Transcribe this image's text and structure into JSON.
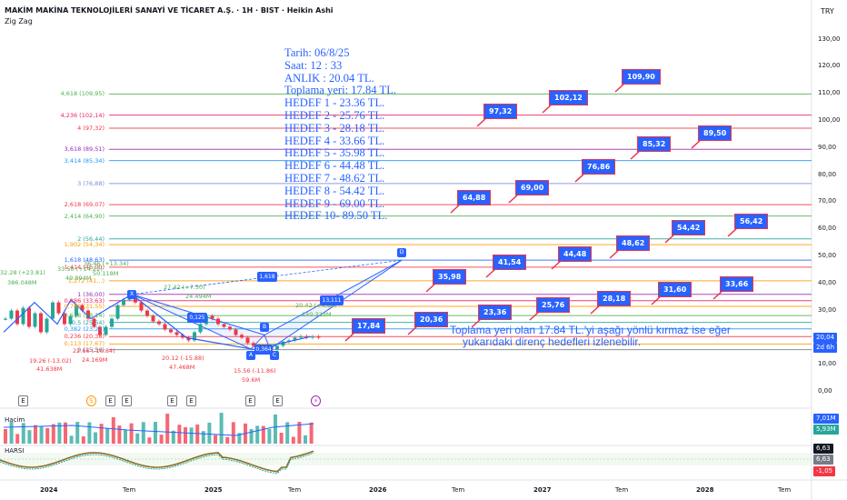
{
  "header": {
    "title": "MAKİM MAKİNA TEKNOLOJİLERİ SANAYİ VE TİCARET A.Ş. · 1H · BIST · Heikin Ashi",
    "indicator": "Zig Zag",
    "currency": "TRY"
  },
  "info_box": {
    "lines": [
      "Tarih:    06/8/25",
      "Saat:      12 : 33",
      "ANLIK :   20.04 TL.",
      "Toplama yeri: 17.84 TL.",
      "HEDEF 1 - 23.36 TL.",
      "HEDEF 2 - 25.76 TL.",
      "HEDEF 3 - 28.18 TL.",
      "HEDEF 4 - 33.66 TL.",
      "HEDEF 5 - 35.98 TL.",
      "HEDEF 6 - 44.48 TL.",
      "HEDEF 7 - 48.62 TL.",
      "HEDEF 8 - 54.42 TL.",
      "HEDEF  9 - 69.00 TL.",
      "HEDEF 10- 89.50 TL."
    ],
    "color": "#2962ff"
  },
  "note": {
    "line1": "Toplama yeri olan 17.84 TL.'yi aşağı yönlü kırmaz ise eğer",
    "line2": "yukarıdaki direnç hedefleri izlenebilir."
  },
  "fib_levels": [
    {
      "label": "4,618 (109,95)",
      "price": 109.95,
      "color": "#4caf50"
    },
    {
      "label": "4,236 (102,14)",
      "price": 102.14,
      "color": "#e91e63"
    },
    {
      "label": "4 (97,32)",
      "price": 97.32,
      "color": "#f23645"
    },
    {
      "label": "3,618 (89,51)",
      "price": 89.51,
      "color": "#9c27b0"
    },
    {
      "label": "3,414 (85,34)",
      "price": 85.34,
      "color": "#2196f3"
    },
    {
      "label": "3 (76,88)",
      "price": 76.88,
      "color": "#7e8bd8"
    },
    {
      "label": "2,618 (69,07)",
      "price": 69.07,
      "color": "#f23645"
    },
    {
      "label": "2,414 (64,90)",
      "price": 64.9,
      "color": "#4caf50"
    },
    {
      "label": "2 (56,44)",
      "price": 56.44,
      "color": "#26a69a"
    },
    {
      "label": "1,902 (54,34)",
      "price": 54.34,
      "color": "#ff9800"
    },
    {
      "label": "1,618 (48,63)",
      "price": 48.63,
      "color": "#2962ff"
    },
    {
      "label": "1,414 (46,00)",
      "price": 46.0,
      "color": "#f23645"
    },
    {
      "label": "1,272 (41,..)",
      "price": 41.0,
      "color": "#ff9800"
    },
    {
      "label": "1 (36,00)",
      "price": 36.0,
      "color": "#9c27b0"
    },
    {
      "label": "0,886 (33,63)",
      "price": 33.63,
      "color": "#e91e63"
    },
    {
      "label": "0,786 (31,55)",
      "price": 31.55,
      "color": "#ff9800"
    },
    {
      "label": "0,618 (28,14)",
      "price": 28.14,
      "color": "#4caf50"
    },
    {
      "label": "0,5 (25,64)",
      "price": 25.64,
      "color": "#26a69a"
    },
    {
      "label": "0,382 (23,22)",
      "price": 23.22,
      "color": "#2196f3"
    },
    {
      "label": "0,236 (20,38)",
      "price": 20.38,
      "color": "#f23645"
    },
    {
      "label": "0,113 (17,67)",
      "price": 17.67,
      "color": "#ff9800"
    },
    {
      "label": "0 (15,56)",
      "price": 15.56,
      "color": "#787b86"
    }
  ],
  "target_boxes": [
    {
      "text": "109,90"
    },
    {
      "text": "102,12"
    },
    {
      "text": "97,32"
    },
    {
      "text": "89,50"
    },
    {
      "text": "85,32"
    },
    {
      "text": "76,86"
    },
    {
      "text": "69,00"
    },
    {
      "text": "64,88"
    },
    {
      "text": "56,42"
    },
    {
      "text": "54,42"
    },
    {
      "text": "48,62"
    },
    {
      "text": "44,48"
    },
    {
      "text": "41,54"
    },
    {
      "text": "35,98"
    },
    {
      "text": "33,66"
    },
    {
      "text": "31,60"
    },
    {
      "text": "28,18"
    },
    {
      "text": "25,76"
    },
    {
      "text": "23,36"
    },
    {
      "text": "20,36"
    },
    {
      "text": "17,84"
    }
  ],
  "pattern_labels": {
    "x": "X",
    "a": "A",
    "b": "B",
    "c": "C",
    "d": "D",
    "r1": "1,618",
    "r2": "0,125",
    "r3": "13,111",
    "r4": "0,364"
  },
  "zigzag_labels": [
    {
      "text": "32.28 (+23.81)",
      "color": "#4caf50"
    },
    {
      "text": "386.048M",
      "color": "#4caf50"
    },
    {
      "text": "33.50 (+14.22)",
      "color": "#4caf50"
    },
    {
      "text": "49.894M",
      "color": "#4caf50"
    },
    {
      "text": "36.46 (+13.34)",
      "color": "#4caf50"
    },
    {
      "text": "50.118M",
      "color": "#4caf50"
    },
    {
      "text": "27.42 (+7.30)",
      "color": "#4caf50"
    },
    {
      "text": "24.494M",
      "color": "#4caf50"
    },
    {
      "text": "20.42 (+4.86)",
      "color": "#4caf50"
    },
    {
      "text": "140.323M",
      "color": "#4caf50"
    },
    {
      "text": "19.26 (-13.02)",
      "color": "#f23645"
    },
    {
      "text": "41.638M",
      "color": "#f23645"
    },
    {
      "text": "22.66 (-10.84)",
      "color": "#f23645"
    },
    {
      "text": "24.169M",
      "color": "#f23645"
    },
    {
      "text": "20.12 (-15.88)",
      "color": "#f23645"
    },
    {
      "text": "47.468M",
      "color": "#f23645"
    },
    {
      "text": "15.56 (-11.86)",
      "color": "#f23645"
    },
    {
      "text": "59.6M",
      "color": "#f23645"
    }
  ],
  "y_axis": [
    "130,00",
    "120,00",
    "110,00",
    "100,00",
    "90,00",
    "80,00",
    "70,00",
    "60,00",
    "50,00",
    "40,00",
    "30,00",
    "20,00",
    "10,00",
    "0,00"
  ],
  "price_tag": {
    "value": "20,04",
    "countdown": "2d 6h",
    "color": "#2962ff"
  },
  "volume": {
    "label": "Hacim",
    "tag1": "7,01M",
    "tag2": "5,93M"
  },
  "harsi": {
    "label": "HARSI",
    "tag1": "6,63",
    "tag2": "6,63",
    "tag3": "-1,05"
  },
  "x_axis": [
    {
      "text": "2024",
      "bold": true
    },
    {
      "text": "Tem",
      "bold": false
    },
    {
      "text": "2025",
      "bold": true
    },
    {
      "text": "Tem",
      "bold": false
    },
    {
      "text": "2026",
      "bold": true
    },
    {
      "text": "Tem",
      "bold": false
    },
    {
      "text": "2027",
      "bold": true
    },
    {
      "text": "Tem",
      "bold": false
    },
    {
      "text": "2028",
      "bold": true
    },
    {
      "text": "Tem",
      "bold": false
    }
  ],
  "events": [
    "E",
    "S",
    "E",
    "E",
    "E",
    "E",
    "E",
    "E",
    "⚡"
  ]
}
